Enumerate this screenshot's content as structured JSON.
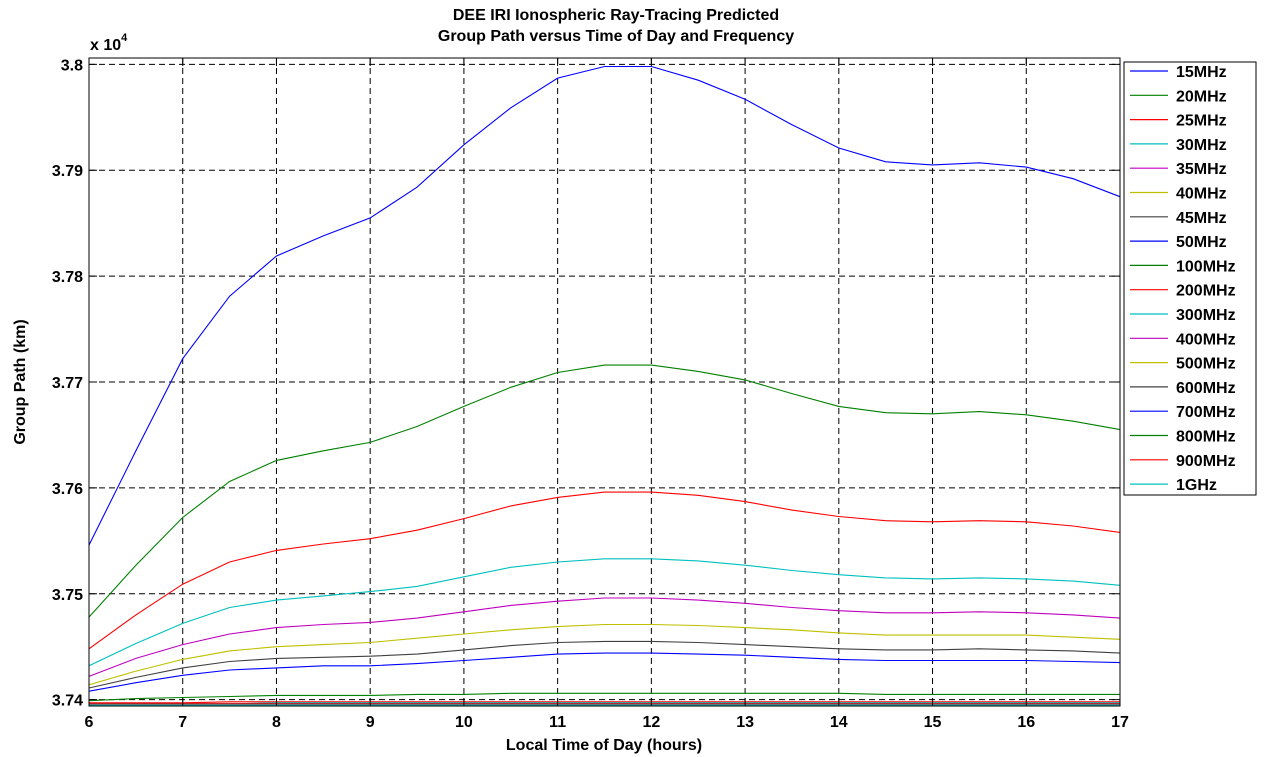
{
  "chart_data": {
    "type": "line",
    "title": [
      "DEE IRI Ionospheric Ray-Tracing Predicted",
      "Group Path versus Time of Day and Frequency"
    ],
    "xlabel": "Local Time of Day (hours)",
    "ylabel": "Group Path (km)",
    "y_multiplier_label": "x 10",
    "y_multiplier_exponent": "4",
    "xlim": [
      6,
      17
    ],
    "ylim": [
      37394,
      38006
    ],
    "grid": true,
    "legend_placement": "right",
    "x_ticks": [
      6,
      7,
      8,
      9,
      10,
      11,
      12,
      13,
      14,
      15,
      16,
      17
    ],
    "x_tick_labels": [
      "6",
      "7",
      "8",
      "9",
      "10",
      "11",
      "12",
      "13",
      "14",
      "15",
      "16",
      "17"
    ],
    "y_ticks": [
      37400,
      37500,
      37600,
      37700,
      37800,
      37900,
      38000
    ],
    "y_tick_labels": [
      "3.74",
      "3.75",
      "3.76",
      "3.77",
      "3.78",
      "3.79",
      "3.8"
    ],
    "x": [
      6,
      6.5,
      7,
      7.5,
      8,
      8.5,
      9,
      9.5,
      10,
      10.5,
      11,
      11.5,
      12,
      12.5,
      13,
      13.5,
      14,
      14.5,
      15,
      15.5,
      16,
      16.5,
      17
    ],
    "series": [
      {
        "name": "15MHz",
        "color": "#0000ff",
        "values": [
          37546,
          37635,
          37722,
          37781,
          37819,
          37838,
          37855,
          37884,
          37924,
          37959,
          37987,
          37998,
          37998,
          37985,
          37967,
          37943,
          37921,
          37908,
          37905,
          37907,
          37903,
          37892,
          37875
        ]
      },
      {
        "name": "20MHz",
        "color": "#008000",
        "values": [
          37478,
          37527,
          37572,
          37606,
          37626,
          37635,
          37643,
          37658,
          37677,
          37695,
          37709,
          37716,
          37716,
          37710,
          37702,
          37689,
          37677,
          37671,
          37670,
          37672,
          37669,
          37663,
          37655
        ]
      },
      {
        "name": "25MHz",
        "color": "#ff0000",
        "values": [
          37448,
          37480,
          37509,
          37530,
          37541,
          37547,
          37552,
          37560,
          37571,
          37583,
          37591,
          37596,
          37596,
          37593,
          37587,
          37579,
          37573,
          37569,
          37568,
          37569,
          37568,
          37564,
          37558
        ]
      },
      {
        "name": "30MHz",
        "color": "#00bfbf",
        "values": [
          37432,
          37453,
          37472,
          37487,
          37494,
          37498,
          37502,
          37507,
          37516,
          37525,
          37530,
          37533,
          37533,
          37531,
          37527,
          37522,
          37518,
          37515,
          37514,
          37515,
          37514,
          37512,
          37508
        ]
      },
      {
        "name": "35MHz",
        "color": "#bf00bf",
        "values": [
          37422,
          37439,
          37452,
          37462,
          37468,
          37471,
          37473,
          37477,
          37483,
          37489,
          37493,
          37496,
          37496,
          37494,
          37491,
          37487,
          37484,
          37482,
          37482,
          37483,
          37482,
          37480,
          37477
        ]
      },
      {
        "name": "40MHz",
        "color": "#bfbf00",
        "values": [
          37414,
          37427,
          37438,
          37446,
          37450,
          37452,
          37454,
          37458,
          37462,
          37466,
          37469,
          37471,
          37471,
          37470,
          37468,
          37466,
          37463,
          37461,
          37461,
          37461,
          37461,
          37459,
          37457
        ]
      },
      {
        "name": "45MHz",
        "color": "#404040",
        "values": [
          37411,
          37421,
          37430,
          37436,
          37439,
          37440,
          37441,
          37443,
          37447,
          37451,
          37454,
          37455,
          37455,
          37454,
          37452,
          37450,
          37448,
          37447,
          37447,
          37448,
          37447,
          37446,
          37444
        ]
      },
      {
        "name": "50MHz",
        "color": "#0000ff",
        "values": [
          37408,
          37416,
          37423,
          37428,
          37430,
          37432,
          37432,
          37434,
          37437,
          37440,
          37443,
          37444,
          37444,
          37443,
          37442,
          37440,
          37438,
          37437,
          37437,
          37437,
          37437,
          37436,
          37435
        ]
      },
      {
        "name": "100MHz",
        "color": "#008000",
        "values": [
          37399,
          37401,
          37402,
          37403,
          37404,
          37404,
          37404,
          37405,
          37405,
          37406,
          37406,
          37406,
          37406,
          37406,
          37406,
          37406,
          37406,
          37405,
          37405,
          37405,
          37405,
          37405,
          37405
        ]
      },
      {
        "name": "200MHz",
        "color": "#ff0000",
        "values": [
          37397,
          37397,
          37397,
          37398,
          37398,
          37398,
          37398,
          37398,
          37398,
          37398,
          37398,
          37398,
          37398,
          37398,
          37398,
          37398,
          37398,
          37398,
          37398,
          37398,
          37398,
          37398,
          37398
        ]
      },
      {
        "name": "300MHz",
        "color": "#00bfbf",
        "values": [
          37396,
          37396,
          37396,
          37396,
          37397,
          37397,
          37397,
          37397,
          37397,
          37397,
          37397,
          37397,
          37397,
          37397,
          37397,
          37397,
          37397,
          37397,
          37397,
          37397,
          37397,
          37397,
          37397
        ]
      },
      {
        "name": "400MHz",
        "color": "#bf00bf",
        "values": [
          37396,
          37396,
          37396,
          37396,
          37396,
          37396,
          37396,
          37396,
          37396,
          37396,
          37396,
          37396,
          37396,
          37396,
          37396,
          37396,
          37396,
          37396,
          37396,
          37396,
          37396,
          37396,
          37396
        ]
      },
      {
        "name": "500MHz",
        "color": "#bfbf00",
        "values": [
          37396,
          37396,
          37396,
          37396,
          37396,
          37396,
          37396,
          37396,
          37396,
          37396,
          37396,
          37396,
          37396,
          37396,
          37396,
          37396,
          37396,
          37396,
          37396,
          37396,
          37396,
          37396,
          37396
        ]
      },
      {
        "name": "600MHz",
        "color": "#404040",
        "values": [
          37396,
          37396,
          37396,
          37396,
          37396,
          37396,
          37396,
          37396,
          37396,
          37396,
          37396,
          37396,
          37396,
          37396,
          37396,
          37396,
          37396,
          37396,
          37396,
          37396,
          37396,
          37396,
          37396
        ]
      },
      {
        "name": "700MHz",
        "color": "#0000ff",
        "values": [
          37396,
          37396,
          37396,
          37396,
          37396,
          37396,
          37396,
          37396,
          37396,
          37396,
          37396,
          37396,
          37396,
          37396,
          37396,
          37396,
          37396,
          37396,
          37396,
          37396,
          37396,
          37396,
          37396
        ]
      },
      {
        "name": "800MHz",
        "color": "#008000",
        "values": [
          37396,
          37396,
          37396,
          37396,
          37396,
          37396,
          37396,
          37396,
          37396,
          37396,
          37396,
          37396,
          37396,
          37396,
          37396,
          37396,
          37396,
          37396,
          37396,
          37396,
          37396,
          37396,
          37396
        ]
      },
      {
        "name": "900MHz",
        "color": "#ff0000",
        "values": [
          37396,
          37396,
          37396,
          37396,
          37396,
          37396,
          37396,
          37396,
          37396,
          37396,
          37396,
          37396,
          37396,
          37396,
          37396,
          37396,
          37396,
          37396,
          37396,
          37396,
          37396,
          37396,
          37396
        ]
      },
      {
        "name": "1GHz",
        "color": "#00bfbf",
        "values": [
          37395,
          37395,
          37395,
          37395,
          37395,
          37395,
          37395,
          37395,
          37395,
          37395,
          37395,
          37395,
          37395,
          37395,
          37395,
          37395,
          37395,
          37395,
          37395,
          37395,
          37395,
          37395,
          37395
        ]
      }
    ]
  }
}
